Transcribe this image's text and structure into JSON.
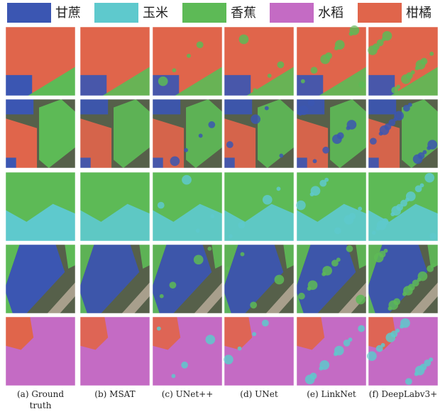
{
  "legend": [
    {
      "label": "甘蔗",
      "color": "#3b56b2"
    },
    {
      "label": "玉米",
      "color": "#5ec9cd"
    },
    {
      "label": "香蕉",
      "color": "#5dba56"
    },
    {
      "label": "水稻",
      "color": "#c46bc4"
    },
    {
      "label": "柑橘",
      "color": "#e0654b"
    }
  ],
  "columns": [
    {
      "caption": "(a) Ground truth"
    },
    {
      "caption": "(b) MSAT"
    },
    {
      "caption": "(c) UNet++"
    },
    {
      "caption": "(d) UNet"
    },
    {
      "caption": "(e) LinkNet"
    },
    {
      "caption": "(f) DeepLabv3+"
    }
  ]
}
